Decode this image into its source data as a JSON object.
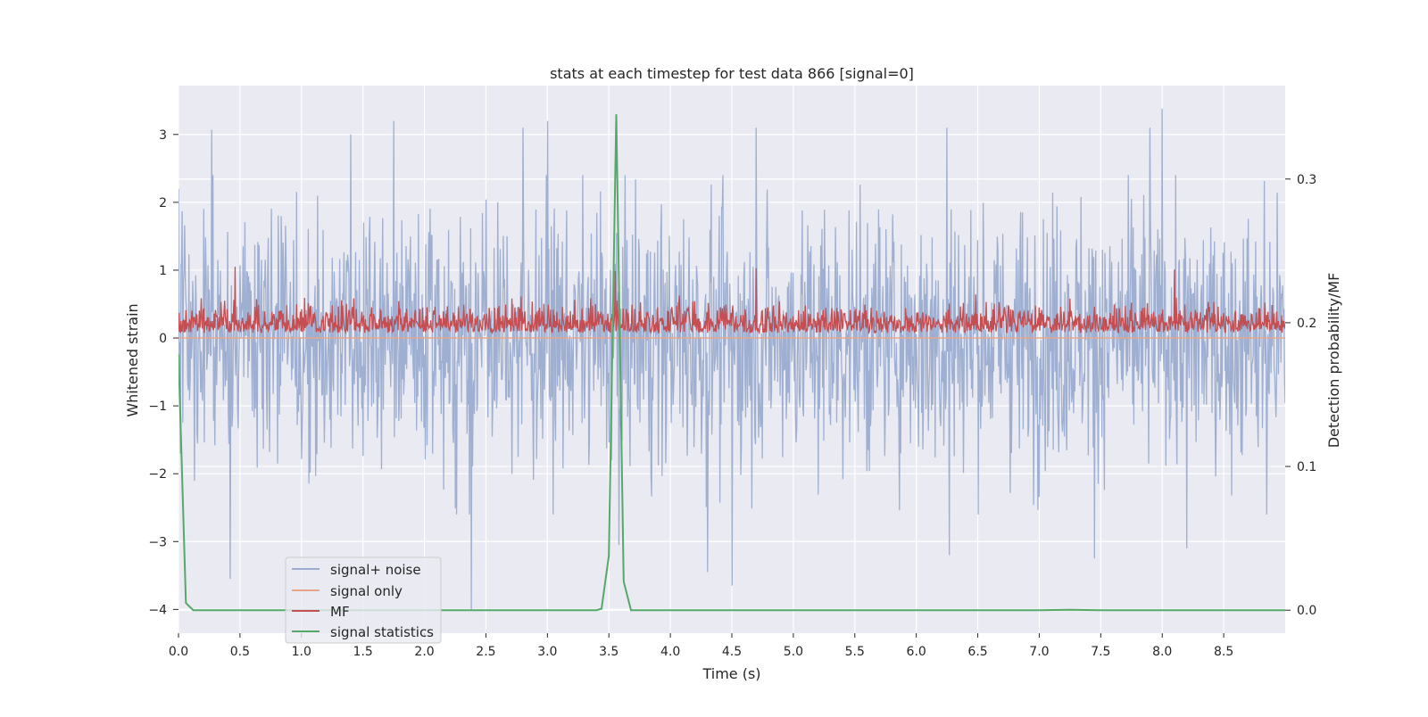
{
  "chart_data": {
    "type": "line",
    "title": "stats at each timestep for test data 866 [signal=0]",
    "xlabel": "Time (s)",
    "ylabel": "Whitened strain",
    "ylabel_right": "Detection probability/MF",
    "xlim": [
      0.0,
      9.0
    ],
    "ylim": [
      -4.35,
      3.72
    ],
    "ylim_right": [
      -0.016,
      0.365
    ],
    "x_ticks": [
      0.0,
      0.5,
      1.0,
      1.5,
      2.0,
      2.5,
      3.0,
      3.5,
      4.0,
      4.5,
      5.0,
      5.5,
      6.0,
      6.5,
      7.0,
      7.5,
      8.0,
      8.5
    ],
    "x_tick_labels": [
      "0.0",
      "0.5",
      "1.0",
      "1.5",
      "2.0",
      "2.5",
      "3.0",
      "3.5",
      "4.0",
      "4.5",
      "5.0",
      "5.5",
      "6.0",
      "6.5",
      "7.0",
      "7.5",
      "8.0",
      "8.5"
    ],
    "y_ticks": [
      3,
      2,
      1,
      0,
      -1,
      -2,
      -3,
      -4
    ],
    "y_tick_labels": [
      "3",
      "2",
      "1",
      "0",
      "−1",
      "−2",
      "−3",
      "−4"
    ],
    "y_right_ticks": [
      0.3,
      0.2,
      0.1,
      0.0
    ],
    "y_right_tick_labels": [
      "0.3",
      "0.2",
      "0.1",
      "0.0"
    ],
    "grid": true,
    "legend_position": "lower-left",
    "colors": {
      "axes_bg": "#eaeaf2",
      "grid": "#ffffff",
      "signal_noise": "#9aaccf",
      "signal_only": "#e8a58a",
      "mf": "#c44e52",
      "stats": "#55a868"
    },
    "series": [
      {
        "name": "signal+ noise",
        "axis": "left",
        "style": "dense noise, roughly zero-mean, amplitude about ±2 with spikes to about 3.4 and -4",
        "x_range": [
          0.0,
          9.0
        ],
        "notable_peaks": [
          [
            0.0,
            2.2
          ],
          [
            0.27,
            3.07
          ],
          [
            1.4,
            3.0
          ],
          [
            1.75,
            3.2
          ],
          [
            2.8,
            3.1
          ],
          [
            3.0,
            3.2
          ],
          [
            4.7,
            3.1
          ],
          [
            6.25,
            3.1
          ],
          [
            7.9,
            3.1
          ],
          [
            8.0,
            3.38
          ]
        ],
        "notable_dips": [
          [
            0.42,
            -3.55
          ],
          [
            2.38,
            -4.0
          ],
          [
            3.58,
            -3.05
          ],
          [
            4.3,
            -3.45
          ],
          [
            4.5,
            -3.65
          ],
          [
            6.27,
            -3.2
          ],
          [
            7.45,
            -3.25
          ],
          [
            8.2,
            -3.1
          ],
          [
            8.85,
            -2.6
          ]
        ]
      },
      {
        "name": "signal only",
        "axis": "left",
        "x": [
          0.0,
          9.0
        ],
        "y": [
          0.0,
          0.0
        ]
      },
      {
        "name": "MF",
        "axis": "right",
        "style": "dense noisy band roughly between 0.19 and 0.24",
        "x_range": [
          0.0,
          9.0
        ],
        "baseline": 0.193,
        "typical_max": 0.22,
        "notable_peaks": [
          [
            0.46,
            0.239
          ],
          [
            4.7,
            0.238
          ],
          [
            8.1,
            0.237
          ],
          [
            3.55,
            0.236
          ]
        ]
      },
      {
        "name": "signal statistics",
        "axis": "right",
        "x": [
          0.0,
          0.06,
          0.12,
          0.5,
          1.0,
          1.5,
          2.0,
          2.5,
          3.0,
          3.4,
          3.44,
          3.5,
          3.56,
          3.62,
          3.68,
          4.0,
          5.0,
          6.0,
          7.0,
          7.25,
          7.5,
          8.0,
          9.0
        ],
        "y": [
          0.178,
          0.005,
          0.0,
          0.0,
          0.0,
          0.0,
          0.0,
          0.0,
          0.0,
          0.0,
          0.001,
          0.038,
          0.345,
          0.02,
          0.0,
          0.0,
          0.0,
          0.0,
          0.0,
          0.0003,
          0.0,
          0.0,
          0.0
        ]
      }
    ]
  }
}
